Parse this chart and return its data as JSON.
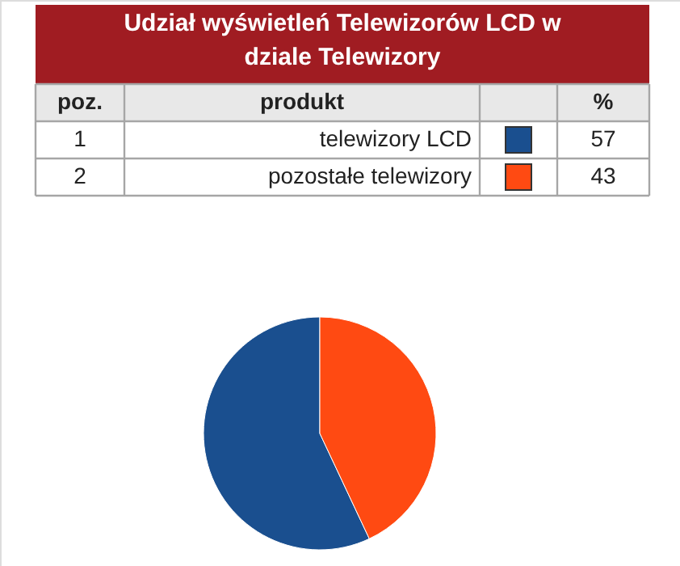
{
  "chart_data": {
    "type": "pie",
    "title": "Udział wyświetleń Telewizorów LCD w dziale Telewizory",
    "categories": [
      "telewizory LCD",
      "pozostałe telewizory"
    ],
    "values": [
      57,
      43
    ],
    "colors": [
      "#1a4f8f",
      "#ff4a12"
    ],
    "data_labels": true,
    "legend": "top",
    "annotations": [
      "poz.",
      "produkt",
      "%",
      "1",
      "2"
    ]
  }
}
